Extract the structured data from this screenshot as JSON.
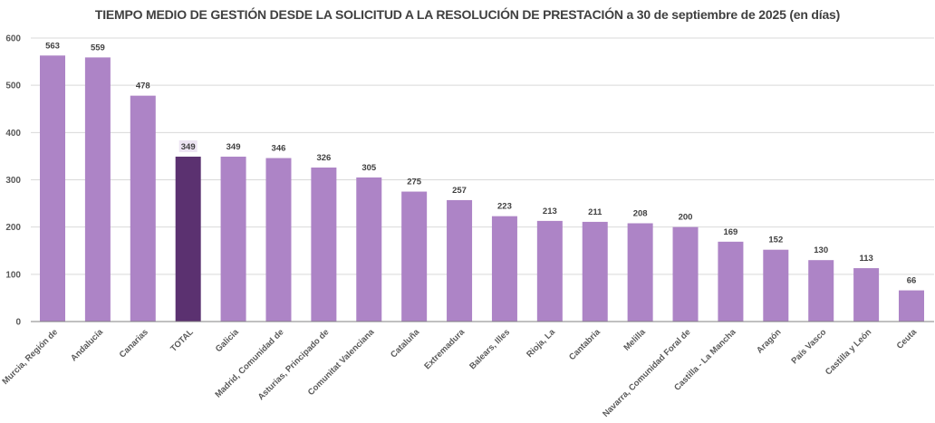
{
  "chart_data": {
    "type": "bar",
    "title": "TIEMPO MEDIO DE GESTIÓN DESDE LA SOLICITUD A LA RESOLUCIÓN DE PRESTACIÓN a 30 de septiembre de 2025 (en días)",
    "xlabel": "",
    "ylabel": "",
    "ylim": [
      0,
      600
    ],
    "yticks": [
      0,
      100,
      200,
      300,
      400,
      500,
      600
    ],
    "grid": true,
    "legend": "none",
    "categories": [
      "Murcia, Región de",
      "Andalucía",
      "Canarias",
      "TOTAL",
      "Galicia",
      "Madrid, Comunidad de",
      "Asturias, Principado de",
      "Comunitat Valenciana",
      "Cataluña",
      "Extremadura",
      "Balears, Illes",
      "Rioja, La",
      "Cantabria",
      "Melilla",
      "Navarra, Comunidad Foral de",
      "Castilla - La Mancha",
      "Aragón",
      "País Vasco",
      "Castilla y León",
      "Ceuta"
    ],
    "values": [
      563,
      559,
      478,
      349,
      349,
      346,
      326,
      305,
      275,
      257,
      223,
      213,
      211,
      208,
      200,
      169,
      152,
      130,
      113,
      66
    ],
    "highlight_category": "TOTAL",
    "colors": {
      "bar": "#ad84c6",
      "highlight_bar": "#5b3170",
      "highlight_label_bg": "#ede4f3",
      "grid": "#d9d9d9",
      "axis": "#808080"
    }
  }
}
